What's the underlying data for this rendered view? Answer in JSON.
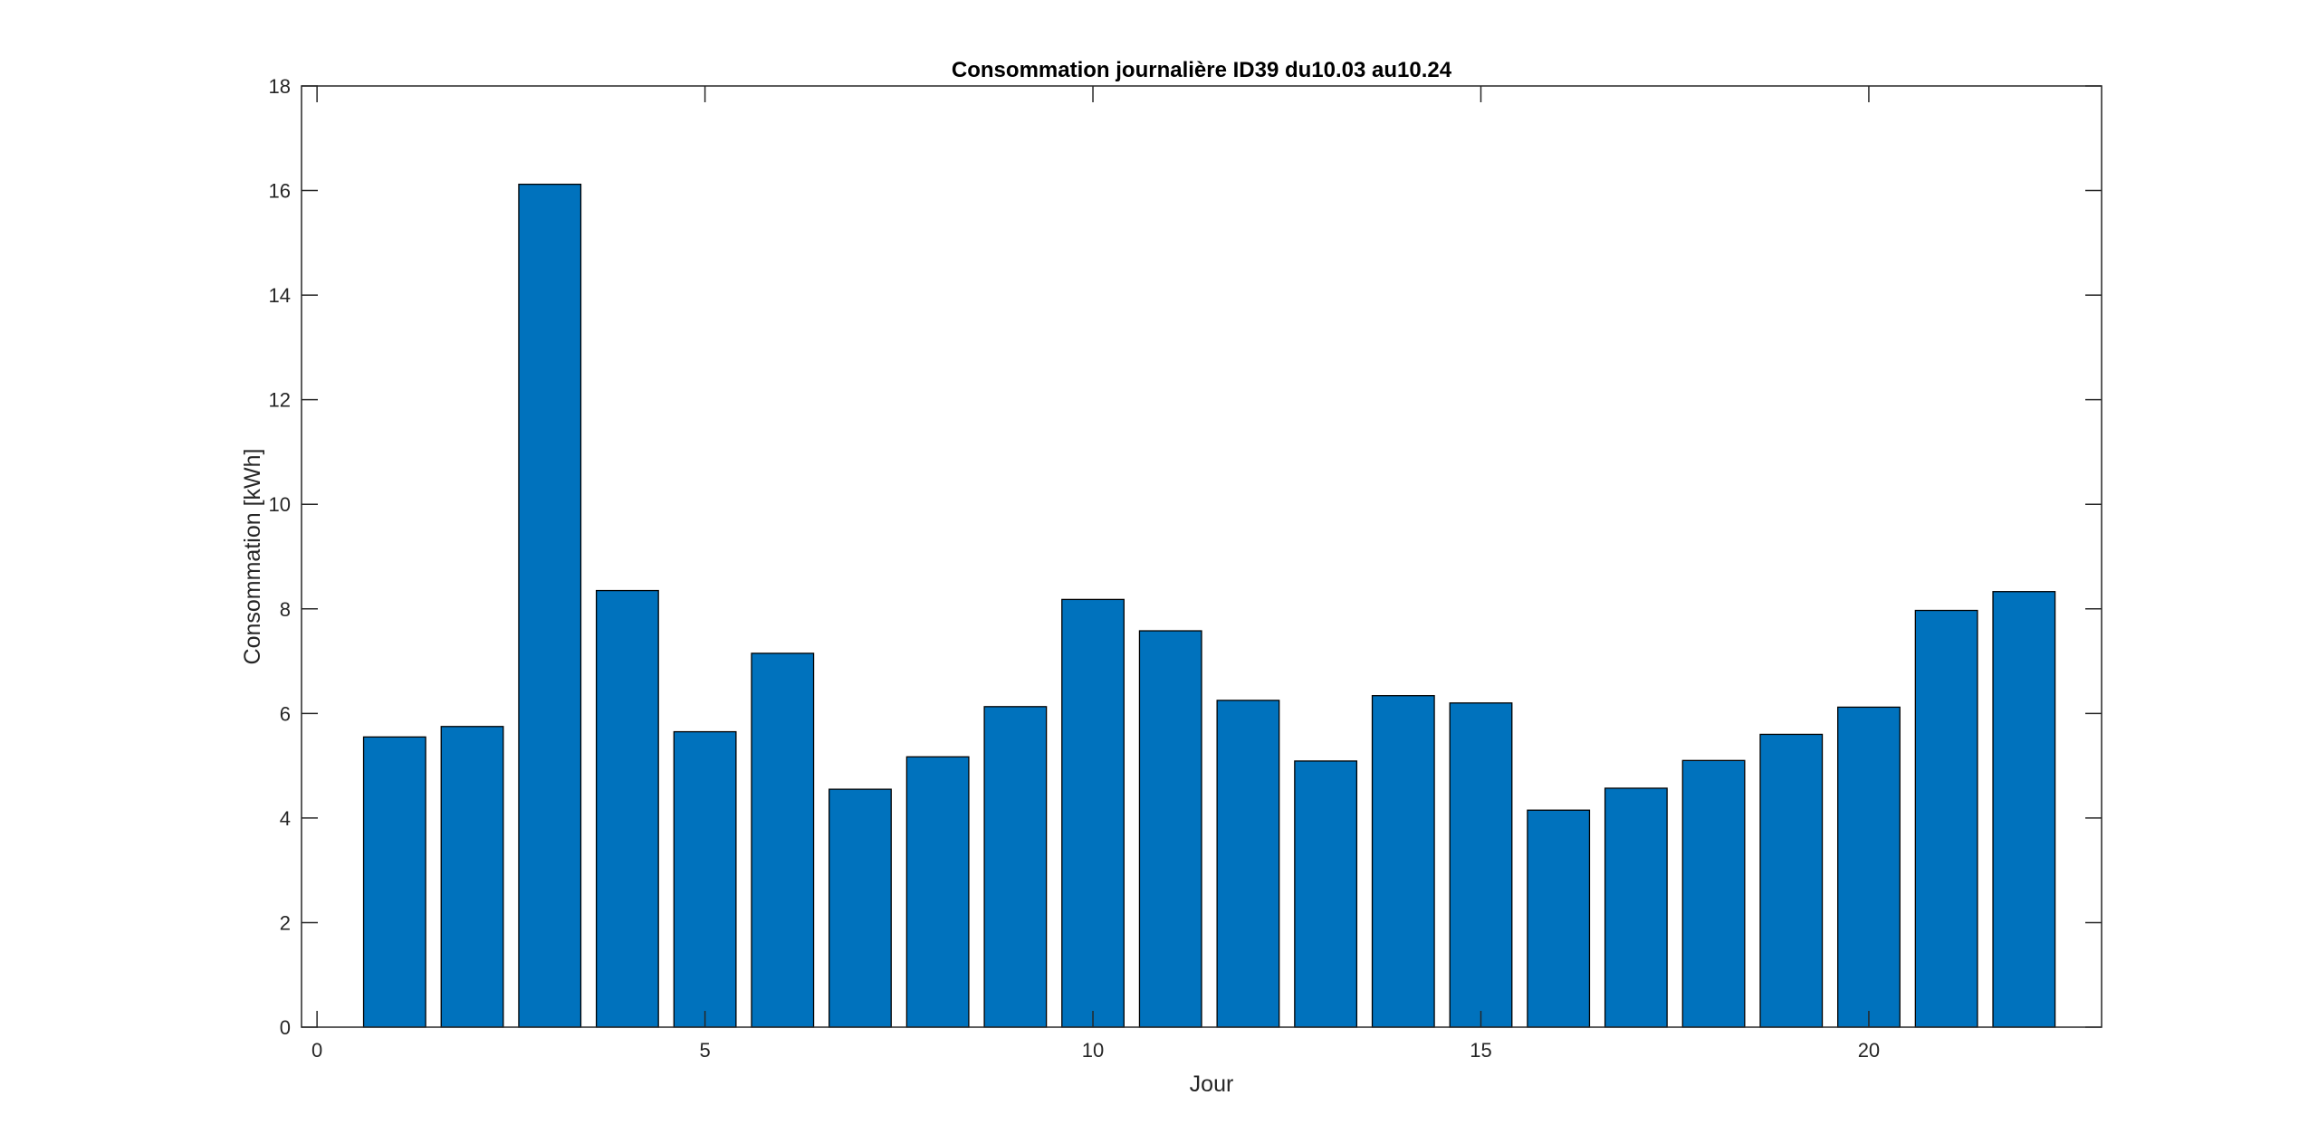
{
  "chart_data": {
    "type": "bar",
    "title": "Consommation journalière ID39 du10.03 au10.24",
    "xlabel": "Jour",
    "ylabel": "Consommation [kWh]",
    "x": [
      1,
      2,
      3,
      4,
      5,
      6,
      7,
      8,
      9,
      10,
      11,
      12,
      13,
      14,
      15,
      16,
      17,
      18,
      19,
      20,
      21,
      22
    ],
    "values": [
      5.55,
      5.75,
      16.12,
      8.35,
      5.65,
      7.15,
      4.55,
      5.17,
      6.13,
      8.18,
      7.58,
      6.25,
      5.09,
      6.34,
      6.2,
      4.15,
      4.57,
      5.1,
      5.6,
      6.12,
      7.97,
      8.33
    ],
    "xlim": [
      -0.2,
      23.0
    ],
    "ylim": [
      0,
      18
    ],
    "xticks": [
      0,
      5,
      10,
      15,
      20
    ],
    "yticks": [
      0,
      2,
      4,
      6,
      8,
      10,
      12,
      14,
      16,
      18
    ],
    "bar_color": "#0072BD",
    "edge_color": "#000000",
    "grid": false,
    "legend": "none"
  }
}
